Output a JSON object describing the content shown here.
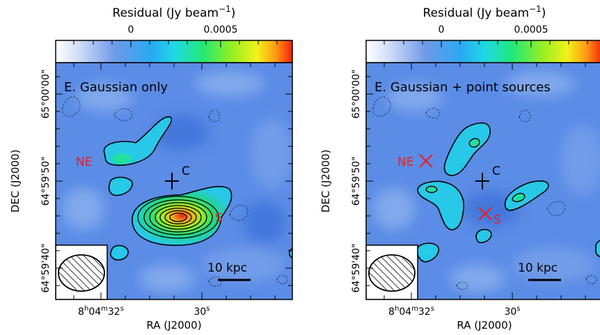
{
  "colorbar": {
    "label": "Residual (Jy beam",
    "label_exp": "−1",
    "label_close": ")",
    "ticks": [
      {
        "value": 0,
        "label": "0"
      },
      {
        "value": 0.0005,
        "label": "0.0005"
      }
    ],
    "colormap": [
      "#ffffff",
      "#8fb3ee",
      "#4a7fe0",
      "#2aa8f2",
      "#1fd8e6",
      "#22e878",
      "#9aee22",
      "#f2f21a",
      "#ff9a12",
      "#f22010"
    ]
  },
  "axes": {
    "xlabel": "RA (J2000)",
    "ylabel": "DEC (J2000)",
    "xticks": [
      {
        "ra_s": 32,
        "label_main": "8",
        "h": "h",
        "m_main": "04",
        "m": "m",
        "s_main": "32",
        "s": "s"
      },
      {
        "ra_s": 30,
        "label_main": "30",
        "s": "s"
      }
    ],
    "yticks": [
      {
        "dec_arcsec": 60,
        "label": "65°00'00\""
      },
      {
        "dec_arcsec": 50,
        "label": "64°59'50\""
      },
      {
        "dec_arcsec": 40,
        "label": "64°59'40\""
      }
    ]
  },
  "scalebar_label": "10 kpc",
  "panels": [
    {
      "title": "E. Gaussian only",
      "markers": [
        {
          "type": "label",
          "text": "NE",
          "color": "#e8201e"
        },
        {
          "type": "cross",
          "text": "C",
          "color": "#000000"
        },
        {
          "type": "label",
          "text": "S",
          "color": "#e8201e"
        }
      ]
    },
    {
      "title": "E. Gaussian + point sources",
      "markers": [
        {
          "type": "x",
          "text": "NE",
          "color": "#e8201e"
        },
        {
          "type": "cross",
          "text": "C",
          "color": "#000000"
        },
        {
          "type": "x",
          "text": "S",
          "color": "#e8201e"
        }
      ]
    }
  ],
  "colors": {
    "background_blue": "#5b8ce6",
    "marker_red": "#e8201e"
  }
}
